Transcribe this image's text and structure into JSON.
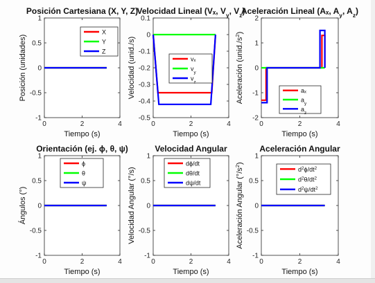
{
  "colors": {
    "x": "#ff0000",
    "y": "#00ff00",
    "z": "#0000ff",
    "axis": "#262626",
    "background": "#ffffff"
  },
  "chart_data": [
    {
      "type": "line",
      "title": "Posición Cartesiana (X, Y, Z)",
      "xlabel": "Tiempo (s)",
      "ylabel": "Posición (unidades)",
      "xlim": [
        0,
        4
      ],
      "ylim": [
        -1,
        1
      ],
      "xticks": [
        0,
        2,
        4
      ],
      "xtick_labels": [
        "0",
        "2",
        "4"
      ],
      "yticks": [
        -1,
        -0.5,
        0,
        0.5,
        1
      ],
      "ytick_labels": [
        "-1",
        "-0.5",
        "0",
        "0.5",
        "1"
      ],
      "legend_position": "top-right",
      "series": [
        {
          "name": "X",
          "color": "#ff0000",
          "x": [
            0,
            3.3
          ],
          "y": [
            0,
            0
          ]
        },
        {
          "name": "Y",
          "color": "#00ff00",
          "x": [
            0,
            3.3
          ],
          "y": [
            0,
            0
          ]
        },
        {
          "name": "Z",
          "color": "#0000ff",
          "x": [
            0,
            3.3
          ],
          "y": [
            0,
            0
          ]
        }
      ]
    },
    {
      "type": "line",
      "title": "Velocidad Lineal (Vₓ, V_y, V_z)",
      "xlabel": "Tiempo (s)",
      "ylabel": "Velocidad (unid./s)",
      "xlim": [
        0,
        4
      ],
      "ylim": [
        -0.5,
        0.1
      ],
      "xticks": [
        0,
        2,
        4
      ],
      "xtick_labels": [
        "0",
        "2",
        "4"
      ],
      "yticks": [
        -0.5,
        -0.4,
        -0.3,
        -0.2,
        -0.1,
        0,
        0.1
      ],
      "ytick_labels": [
        "-0.5",
        "-0.4",
        "-0.3",
        "-0.2",
        "-0.1",
        "0",
        "0.1"
      ],
      "legend_position": "middle",
      "series": [
        {
          "name": "vₓ",
          "color": "#ff0000",
          "x": [
            0,
            0.25,
            3.1,
            3.3
          ],
          "y": [
            0,
            -0.35,
            -0.35,
            0
          ]
        },
        {
          "name": "v_y",
          "color": "#00ff00",
          "x": [
            0,
            3.3
          ],
          "y": [
            0,
            0
          ]
        },
        {
          "name": "v_z",
          "color": "#0000ff",
          "x": [
            0,
            0.3,
            3.05,
            3.3
          ],
          "y": [
            0,
            -0.42,
            -0.42,
            0
          ]
        }
      ]
    },
    {
      "type": "line",
      "title": "Aceleración Lineal (Aₓ, A_y, A_z)",
      "xlabel": "Tiempo (s)",
      "ylabel": "Aceleración (unid./s²)",
      "xlim": [
        0,
        4
      ],
      "ylim": [
        -2,
        2
      ],
      "xticks": [
        0,
        2,
        4
      ],
      "xtick_labels": [
        "0",
        "2",
        "4"
      ],
      "yticks": [
        -2,
        -1,
        0,
        1,
        2
      ],
      "ytick_labels": [
        "-2",
        "-1",
        "0",
        "1",
        "2"
      ],
      "legend_position": "bottom",
      "series": [
        {
          "name": "aₓ",
          "color": "#ff0000",
          "x": [
            0,
            0.25,
            0.25,
            3.15,
            3.15,
            3.3,
            3.3
          ],
          "y": [
            -1.3,
            -1.3,
            0,
            0,
            1.3,
            1.3,
            0
          ]
        },
        {
          "name": "a_y",
          "color": "#00ff00",
          "x": [
            0,
            3.3
          ],
          "y": [
            0,
            0
          ]
        },
        {
          "name": "a_z",
          "color": "#0000ff",
          "x": [
            0,
            0.3,
            0.3,
            3.05,
            3.05,
            3.3,
            3.3
          ],
          "y": [
            -1.4,
            -1.4,
            0,
            0,
            1.5,
            1.5,
            0
          ]
        }
      ]
    },
    {
      "type": "line",
      "title": "Orientación (ej. ϕ, θ, ψ)",
      "xlabel": "Tiempo (s)",
      "ylabel": "Ángulos (°)",
      "xlim": [
        0,
        4
      ],
      "ylim": [
        -1,
        1
      ],
      "xticks": [
        0,
        2,
        4
      ],
      "xtick_labels": [
        "0",
        "2",
        "4"
      ],
      "yticks": [
        -1,
        -0.5,
        0,
        0.5,
        1
      ],
      "ytick_labels": [
        "-1",
        "-0.5",
        "0",
        "0.5",
        "1"
      ],
      "legend_position": "top-right",
      "series": [
        {
          "name": "ϕ",
          "color": "#ff0000",
          "x": [
            0,
            3.3
          ],
          "y": [
            0,
            0
          ]
        },
        {
          "name": "θ",
          "color": "#00ff00",
          "x": [
            0,
            3.3
          ],
          "y": [
            0,
            0
          ]
        },
        {
          "name": "ψ",
          "color": "#0000ff",
          "x": [
            0,
            3.3
          ],
          "y": [
            0,
            0
          ]
        }
      ]
    },
    {
      "type": "line",
      "title": "Velocidad Angular",
      "xlabel": "Tiempo (s)",
      "ylabel": "Velocidad Angular (°/s)",
      "xlim": [
        0,
        4
      ],
      "ylim": [
        -1,
        1
      ],
      "xticks": [
        0,
        2,
        4
      ],
      "xtick_labels": [
        "0",
        "2",
        "4"
      ],
      "yticks": [
        -1,
        -0.5,
        0,
        0.5,
        1
      ],
      "ytick_labels": [
        "-1",
        "-0.5",
        "0",
        "0.5",
        "1"
      ],
      "legend_position": "top-right",
      "series": [
        {
          "name": "dϕ/dt",
          "color": "#ff0000",
          "x": [
            0,
            3.3
          ],
          "y": [
            0,
            0
          ]
        },
        {
          "name": "dθ/dt",
          "color": "#00ff00",
          "x": [
            0,
            3.3
          ],
          "y": [
            0,
            0
          ]
        },
        {
          "name": "dψ/dt",
          "color": "#0000ff",
          "x": [
            0,
            3.3
          ],
          "y": [
            0,
            0
          ]
        }
      ]
    },
    {
      "type": "line",
      "title": "Aceleración Angular",
      "xlabel": "Tiempo (s)",
      "ylabel": "Aceleración Angular (°/s²)",
      "xlim": [
        0,
        4
      ],
      "ylim": [
        -1,
        1
      ],
      "xticks": [
        0,
        2,
        4
      ],
      "xtick_labels": [
        "0",
        "2",
        "4"
      ],
      "yticks": [
        -1,
        -0.5,
        0,
        0.5,
        1
      ],
      "ytick_labels": [
        "-1",
        "-0.5",
        "0",
        "0.5",
        "1"
      ],
      "legend_position": "top-right",
      "series": [
        {
          "name": "d²ϕ/dt²",
          "color": "#ff0000",
          "x": [
            0,
            3.3
          ],
          "y": [
            0,
            0
          ]
        },
        {
          "name": "d²θ/dt²",
          "color": "#00ff00",
          "x": [
            0,
            3.3
          ],
          "y": [
            0,
            0
          ]
        },
        {
          "name": "d²ψ/dt²",
          "color": "#0000ff",
          "x": [
            0,
            3.3
          ],
          "y": [
            0,
            0
          ]
        }
      ]
    }
  ]
}
